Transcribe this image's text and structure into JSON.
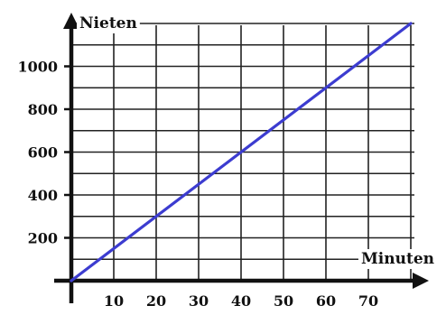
{
  "chart_data": {
    "type": "line",
    "xlabel": "Minuten",
    "ylabel": "Nieten",
    "x_ticks": [
      10,
      20,
      30,
      40,
      50,
      60,
      70
    ],
    "y_ticks": [
      200,
      400,
      600,
      800,
      1000
    ],
    "xlim": [
      0,
      80
    ],
    "ylim": [
      0,
      1200
    ],
    "grid": true,
    "series": [
      {
        "x": [
          0,
          80
        ],
        "y": [
          0,
          1200
        ]
      }
    ],
    "colors": {
      "line": "#3c3cd0",
      "axes": "#111111",
      "grid": "#222222"
    }
  }
}
